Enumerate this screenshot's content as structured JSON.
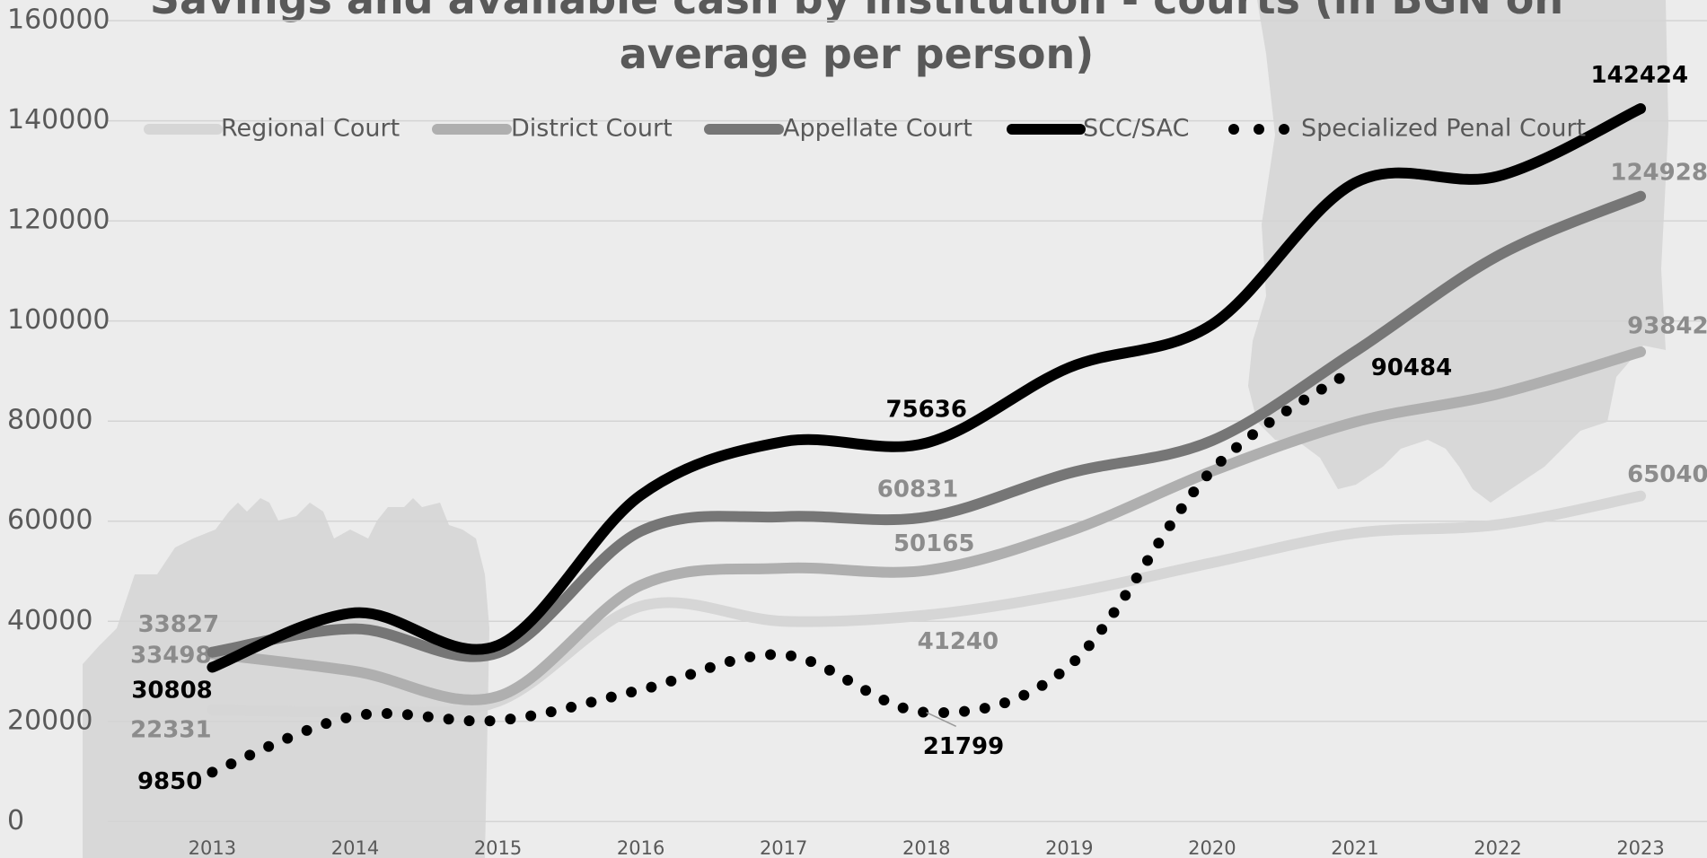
{
  "chart_data": {
    "type": "line",
    "title": "Savings and available cash by institution - courts (in BGN on average per person)",
    "categories": [
      2013,
      2014,
      2015,
      2016,
      2017,
      2018,
      2019,
      2020,
      2021,
      2022,
      2023
    ],
    "series": [
      {
        "name": "Regional Court",
        "color": "#d6d6d6",
        "values": [
          22331,
          22000,
          24000,
          43000,
          40000,
          41240,
          45600,
          51700,
          57600,
          59300,
          65040
        ]
      },
      {
        "name": "District Court",
        "color": "#afafaf",
        "values": [
          33498,
          30000,
          25000,
          47200,
          50600,
          50165,
          58000,
          70000,
          79800,
          85400,
          93842
        ]
      },
      {
        "name": "Appellate Court",
        "color": "#767676",
        "values": [
          33827,
          38500,
          33700,
          58000,
          60900,
          60831,
          69600,
          76100,
          93900,
          113000,
          124928
        ]
      },
      {
        "name": "SCC/SAC",
        "color": "#000000",
        "values": [
          30808,
          41700,
          35200,
          65200,
          75900,
          75636,
          90700,
          99300,
          127600,
          128900,
          142424
        ]
      },
      {
        "name": "Specialized Penal Court",
        "color": "#000000",
        "dotted": true,
        "values": [
          9850,
          21100,
          20200,
          26300,
          33300,
          21799,
          31100,
          70200,
          90484,
          null,
          null
        ]
      }
    ],
    "ylim": [
      0,
      160000
    ],
    "yticks": [
      0,
      20000,
      40000,
      60000,
      80000,
      100000,
      120000,
      140000,
      160000
    ],
    "grid": true
  }
}
